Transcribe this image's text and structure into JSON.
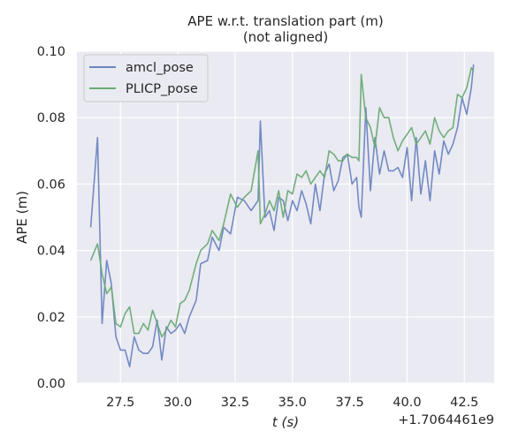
{
  "chart_data": {
    "type": "line",
    "title": "APE w.r.t. translation part (m)",
    "subtitle": "(not aligned)",
    "xlabel": "t (s)",
    "ylabel": "APE (m)",
    "x_offset_label": "+1.7064461e9",
    "xlim": [
      25.6,
      43.8
    ],
    "ylim": [
      0.0,
      0.1
    ],
    "xticks": [
      "27.5",
      "30.0",
      "32.5",
      "35.0",
      "37.5",
      "40.0",
      "42.5"
    ],
    "yticks": [
      "0.00",
      "0.02",
      "0.04",
      "0.06",
      "0.08",
      "0.10"
    ],
    "grid": true,
    "legend_position": "top-left",
    "series": [
      {
        "name": "amcl_pose",
        "color": "#6b85c0",
        "x": [
          26.2,
          26.5,
          26.7,
          26.9,
          27.1,
          27.3,
          27.5,
          27.7,
          27.9,
          28.1,
          28.3,
          28.5,
          28.7,
          28.9,
          29.1,
          29.3,
          29.5,
          29.7,
          29.9,
          30.1,
          30.3,
          30.5,
          30.8,
          31.0,
          31.3,
          31.5,
          31.8,
          32.0,
          32.3,
          32.6,
          32.9,
          33.2,
          33.5,
          33.6,
          33.8,
          34.0,
          34.2,
          34.4,
          34.6,
          34.8,
          35.0,
          35.2,
          35.4,
          35.6,
          35.8,
          36.0,
          36.2,
          36.4,
          36.6,
          36.8,
          37.0,
          37.2,
          37.4,
          37.6,
          37.8,
          37.9,
          38.0,
          38.2,
          38.4,
          38.6,
          38.8,
          39.0,
          39.2,
          39.4,
          39.6,
          39.8,
          40.0,
          40.2,
          40.4,
          40.6,
          40.8,
          41.0,
          41.2,
          41.4,
          41.6,
          41.8,
          42.0,
          42.2,
          42.4,
          42.6,
          42.8,
          42.9
        ],
        "values": [
          0.047,
          0.074,
          0.018,
          0.037,
          0.03,
          0.014,
          0.01,
          0.01,
          0.005,
          0.014,
          0.01,
          0.009,
          0.009,
          0.011,
          0.019,
          0.007,
          0.017,
          0.015,
          0.016,
          0.018,
          0.015,
          0.02,
          0.025,
          0.036,
          0.037,
          0.044,
          0.04,
          0.047,
          0.045,
          0.056,
          0.055,
          0.052,
          0.055,
          0.079,
          0.05,
          0.052,
          0.046,
          0.056,
          0.055,
          0.049,
          0.055,
          0.052,
          0.058,
          0.054,
          0.048,
          0.06,
          0.052,
          0.063,
          0.066,
          0.058,
          0.061,
          0.068,
          0.069,
          0.06,
          0.062,
          0.053,
          0.05,
          0.083,
          0.058,
          0.074,
          0.063,
          0.07,
          0.064,
          0.064,
          0.065,
          0.062,
          0.071,
          0.055,
          0.074,
          0.057,
          0.067,
          0.055,
          0.07,
          0.063,
          0.073,
          0.069,
          0.072,
          0.077,
          0.086,
          0.081,
          0.089,
          0.096
        ]
      },
      {
        "name": "PLICP_pose",
        "color": "#6aab74",
        "x": [
          26.2,
          26.5,
          26.7,
          26.9,
          27.1,
          27.3,
          27.5,
          27.7,
          27.9,
          28.1,
          28.3,
          28.5,
          28.7,
          28.9,
          29.1,
          29.3,
          29.5,
          29.7,
          29.9,
          30.1,
          30.3,
          30.5,
          30.8,
          31.0,
          31.3,
          31.5,
          31.8,
          32.0,
          32.3,
          32.6,
          32.9,
          33.2,
          33.5,
          33.6,
          33.8,
          34.0,
          34.2,
          34.4,
          34.6,
          34.8,
          35.0,
          35.2,
          35.4,
          35.6,
          35.8,
          36.0,
          36.2,
          36.4,
          36.6,
          36.8,
          37.0,
          37.2,
          37.4,
          37.6,
          37.8,
          37.9,
          38.0,
          38.2,
          38.4,
          38.6,
          38.8,
          39.0,
          39.2,
          39.4,
          39.6,
          39.8,
          40.0,
          40.2,
          40.4,
          40.6,
          40.8,
          41.0,
          41.2,
          41.4,
          41.6,
          41.8,
          42.0,
          42.2,
          42.4,
          42.6,
          42.8,
          42.9
        ],
        "values": [
          0.037,
          0.042,
          0.033,
          0.027,
          0.029,
          0.018,
          0.017,
          0.021,
          0.023,
          0.015,
          0.015,
          0.018,
          0.016,
          0.022,
          0.018,
          0.014,
          0.016,
          0.019,
          0.017,
          0.024,
          0.025,
          0.028,
          0.036,
          0.04,
          0.042,
          0.046,
          0.043,
          0.048,
          0.057,
          0.053,
          0.056,
          0.058,
          0.07,
          0.048,
          0.051,
          0.055,
          0.052,
          0.058,
          0.05,
          0.058,
          0.057,
          0.063,
          0.062,
          0.064,
          0.06,
          0.062,
          0.064,
          0.062,
          0.07,
          0.069,
          0.067,
          0.067,
          0.069,
          0.068,
          0.068,
          0.067,
          0.093,
          0.08,
          0.077,
          0.071,
          0.083,
          0.08,
          0.08,
          0.074,
          0.07,
          0.073,
          0.075,
          0.077,
          0.072,
          0.074,
          0.076,
          0.072,
          0.08,
          0.076,
          0.074,
          0.076,
          0.077,
          0.087,
          0.086,
          0.089,
          0.095,
          0.094
        ]
      }
    ]
  }
}
